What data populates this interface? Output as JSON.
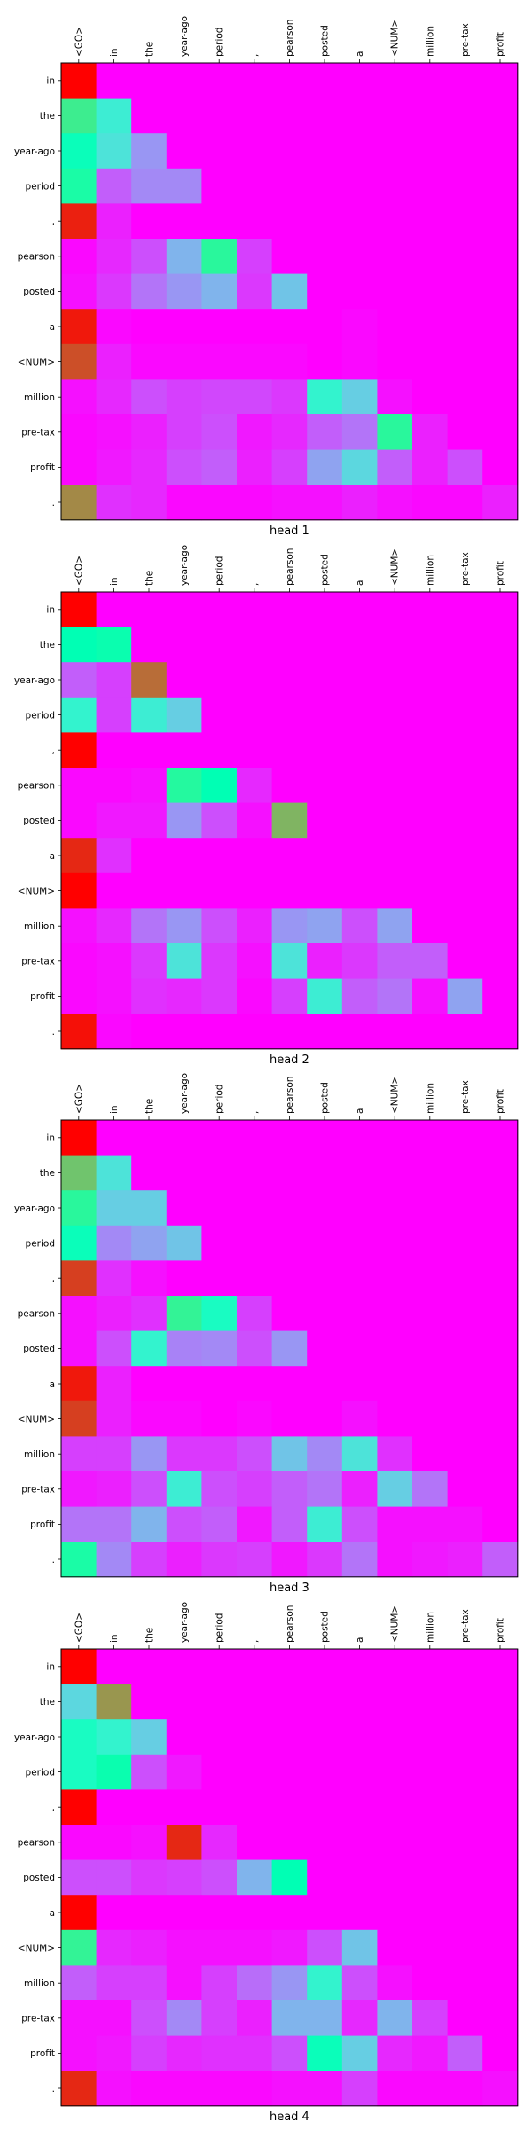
{
  "chart_data": [
    {
      "type": "heatmap",
      "title": "head 1",
      "x_labels": [
        "<GO>",
        "in",
        "the",
        "year-ago",
        "period",
        ",",
        "pearson",
        "posted",
        "a",
        "<NUM>",
        "million",
        "pre-tax",
        "profit"
      ],
      "y_labels": [
        "in",
        "the",
        "year-ago",
        "period",
        ",",
        "pearson",
        "posted",
        "a",
        "<NUM>",
        "million",
        "pre-tax",
        "profit",
        "."
      ],
      "colormap": "rainbow",
      "values": [
        [
          1.0,
          0.0,
          0.0,
          0.0,
          0.0,
          0.0,
          0.0,
          0.0,
          0.0,
          0.0,
          0.0,
          0.0,
          0.0
        ],
        [
          0.62,
          0.38,
          0.0,
          0.0,
          0.0,
          0.0,
          0.0,
          0.0,
          0.0,
          0.0,
          0.0,
          0.0,
          0.0
        ],
        [
          0.48,
          0.35,
          0.2,
          0.0,
          0.0,
          0.0,
          0.0,
          0.0,
          0.0,
          0.0,
          0.0,
          0.0,
          0.0
        ],
        [
          0.55,
          0.12,
          0.18,
          0.18,
          0.0,
          0.0,
          0.0,
          0.0,
          0.0,
          0.0,
          0.0,
          0.0,
          0.0
        ],
        [
          0.96,
          0.04,
          0.0,
          0.0,
          0.0,
          0.0,
          0.0,
          0.0,
          0.0,
          0.0,
          0.0,
          0.0,
          0.0
        ],
        [
          0.01,
          0.05,
          0.1,
          0.25,
          0.58,
          0.08,
          0.0,
          0.0,
          0.0,
          0.0,
          0.0,
          0.0,
          0.0
        ],
        [
          0.02,
          0.07,
          0.15,
          0.2,
          0.25,
          0.07,
          0.28,
          0.0,
          0.0,
          0.0,
          0.0,
          0.0,
          0.0
        ],
        [
          0.97,
          0.01,
          0.0,
          0.0,
          0.0,
          0.0,
          0.0,
          0.0,
          0.01,
          0.0,
          0.0,
          0.0,
          0.0
        ],
        [
          0.9,
          0.04,
          0.01,
          0.01,
          0.01,
          0.01,
          0.01,
          0.0,
          0.01,
          0.0,
          0.0,
          0.0,
          0.0
        ],
        [
          0.02,
          0.05,
          0.1,
          0.08,
          0.09,
          0.09,
          0.07,
          0.4,
          0.3,
          0.02,
          0.0,
          0.0,
          0.0
        ],
        [
          0.01,
          0.02,
          0.04,
          0.08,
          0.1,
          0.03,
          0.05,
          0.12,
          0.15,
          0.58,
          0.04,
          0.0,
          0.0
        ],
        [
          0.01,
          0.03,
          0.05,
          0.1,
          0.12,
          0.04,
          0.08,
          0.22,
          0.32,
          0.12,
          0.04,
          0.1,
          0.0
        ],
        [
          0.82,
          0.06,
          0.05,
          0.01,
          0.01,
          0.01,
          0.02,
          0.02,
          0.04,
          0.02,
          0.01,
          0.01,
          0.04
        ]
      ]
    },
    {
      "type": "heatmap",
      "title": "head 2",
      "x_labels": [
        "<GO>",
        "in",
        "the",
        "year-ago",
        "period",
        ",",
        "pearson",
        "posted",
        "a",
        "<NUM>",
        "million",
        "pre-tax",
        "profit"
      ],
      "y_labels": [
        "in",
        "the",
        "year-ago",
        "period",
        ",",
        "pearson",
        "posted",
        "a",
        "<NUM>",
        "million",
        "pre-tax",
        "profit",
        "."
      ],
      "colormap": "rainbow",
      "values": [
        [
          1.0,
          0.0,
          0.0,
          0.0,
          0.0,
          0.0,
          0.0,
          0.0,
          0.0,
          0.0,
          0.0,
          0.0,
          0.0
        ],
        [
          0.5,
          0.52,
          0.0,
          0.0,
          0.0,
          0.0,
          0.0,
          0.0,
          0.0,
          0.0,
          0.0,
          0.0,
          0.0
        ],
        [
          0.12,
          0.08,
          0.86,
          0.0,
          0.0,
          0.0,
          0.0,
          0.0,
          0.0,
          0.0,
          0.0,
          0.0,
          0.0
        ],
        [
          0.4,
          0.08,
          0.38,
          0.3,
          0.0,
          0.0,
          0.0,
          0.0,
          0.0,
          0.0,
          0.0,
          0.0,
          0.0
        ],
        [
          1.0,
          0.0,
          0.0,
          0.0,
          0.0,
          0.0,
          0.0,
          0.0,
          0.0,
          0.0,
          0.0,
          0.0,
          0.0
        ],
        [
          0.01,
          0.01,
          0.02,
          0.57,
          0.5,
          0.05,
          0.0,
          0.0,
          0.0,
          0.0,
          0.0,
          0.0,
          0.0
        ],
        [
          0.01,
          0.03,
          0.03,
          0.2,
          0.1,
          0.02,
          0.75,
          0.0,
          0.0,
          0.0,
          0.0,
          0.0,
          0.0
        ],
        [
          0.95,
          0.06,
          0.0,
          0.0,
          0.0,
          0.0,
          0.0,
          0.0,
          0.0,
          0.0,
          0.0,
          0.0,
          0.0
        ],
        [
          1.0,
          0.0,
          0.0,
          0.0,
          0.0,
          0.0,
          0.0,
          0.0,
          0.0,
          0.0,
          0.0,
          0.0,
          0.0
        ],
        [
          0.02,
          0.05,
          0.15,
          0.2,
          0.1,
          0.04,
          0.2,
          0.22,
          0.1,
          0.22,
          0.0,
          0.0,
          0.0
        ],
        [
          0.01,
          0.02,
          0.07,
          0.35,
          0.07,
          0.02,
          0.35,
          0.04,
          0.07,
          0.12,
          0.12,
          0.0,
          0.0
        ],
        [
          0.01,
          0.02,
          0.06,
          0.05,
          0.07,
          0.01,
          0.08,
          0.38,
          0.12,
          0.15,
          0.02,
          0.22,
          0.0
        ],
        [
          0.98,
          0.01,
          0.0,
          0.0,
          0.0,
          0.0,
          0.0,
          0.0,
          0.0,
          0.0,
          0.0,
          0.0,
          0.0
        ]
      ]
    },
    {
      "type": "heatmap",
      "title": "head 3",
      "x_labels": [
        "<GO>",
        "in",
        "the",
        "year-ago",
        "period",
        ",",
        "pearson",
        "posted",
        "a",
        "<NUM>",
        "million",
        "pre-tax",
        "profit"
      ],
      "y_labels": [
        "in",
        "the",
        "year-ago",
        "period",
        ",",
        "pearson",
        "posted",
        "a",
        "<NUM>",
        "million",
        "pre-tax",
        "profit",
        "."
      ],
      "colormap": "rainbow",
      "values": [
        [
          1.0,
          0.0,
          0.0,
          0.0,
          0.0,
          0.0,
          0.0,
          0.0,
          0.0,
          0.0,
          0.0,
          0.0,
          0.0
        ],
        [
          0.72,
          0.35,
          0.0,
          0.0,
          0.0,
          0.0,
          0.0,
          0.0,
          0.0,
          0.0,
          0.0,
          0.0,
          0.0
        ],
        [
          0.58,
          0.3,
          0.3,
          0.0,
          0.0,
          0.0,
          0.0,
          0.0,
          0.0,
          0.0,
          0.0,
          0.0,
          0.0
        ],
        [
          0.48,
          0.18,
          0.22,
          0.28,
          0.0,
          0.0,
          0.0,
          0.0,
          0.0,
          0.0,
          0.0,
          0.0,
          0.0
        ],
        [
          0.92,
          0.06,
          0.02,
          0.0,
          0.0,
          0.0,
          0.0,
          0.0,
          0.0,
          0.0,
          0.0,
          0.0,
          0.0
        ],
        [
          0.02,
          0.04,
          0.06,
          0.6,
          0.45,
          0.08,
          0.0,
          0.0,
          0.0,
          0.0,
          0.0,
          0.0,
          0.0
        ],
        [
          0.02,
          0.1,
          0.4,
          0.17,
          0.18,
          0.1,
          0.2,
          0.0,
          0.0,
          0.0,
          0.0,
          0.0,
          0.0
        ],
        [
          0.97,
          0.04,
          0.0,
          0.0,
          0.0,
          0.0,
          0.0,
          0.0,
          0.0,
          0.0,
          0.0,
          0.0,
          0.0
        ],
        [
          0.92,
          0.04,
          0.01,
          0.01,
          0.0,
          0.01,
          0.0,
          0.0,
          0.02,
          0.0,
          0.0,
          0.0,
          0.0
        ],
        [
          0.08,
          0.08,
          0.2,
          0.07,
          0.07,
          0.1,
          0.28,
          0.18,
          0.35,
          0.06,
          0.0,
          0.0,
          0.0
        ],
        [
          0.03,
          0.04,
          0.1,
          0.38,
          0.1,
          0.08,
          0.12,
          0.15,
          0.04,
          0.3,
          0.15,
          0.0,
          0.0
        ],
        [
          0.15,
          0.15,
          0.25,
          0.1,
          0.12,
          0.03,
          0.12,
          0.38,
          0.1,
          0.02,
          0.02,
          0.02,
          0.0
        ],
        [
          0.55,
          0.18,
          0.08,
          0.04,
          0.07,
          0.08,
          0.03,
          0.07,
          0.15,
          0.02,
          0.03,
          0.04,
          0.12
        ]
      ]
    },
    {
      "type": "heatmap",
      "title": "head 4",
      "x_labels": [
        "<GO>",
        "in",
        "the",
        "year-ago",
        "period",
        ",",
        "pearson",
        "posted",
        "a",
        "<NUM>",
        "million",
        "pre-tax",
        "profit"
      ],
      "y_labels": [
        "in",
        "the",
        "year-ago",
        "period",
        ",",
        "pearson",
        "posted",
        "a",
        "<NUM>",
        "million",
        "pre-tax",
        "profit",
        "."
      ],
      "colormap": "rainbow",
      "values": [
        [
          1.0,
          0.0,
          0.0,
          0.0,
          0.0,
          0.0,
          0.0,
          0.0,
          0.0,
          0.0,
          0.0,
          0.0,
          0.0
        ],
        [
          0.32,
          0.8,
          0.0,
          0.0,
          0.0,
          0.0,
          0.0,
          0.0,
          0.0,
          0.0,
          0.0,
          0.0,
          0.0
        ],
        [
          0.45,
          0.4,
          0.3,
          0.0,
          0.0,
          0.0,
          0.0,
          0.0,
          0.0,
          0.0,
          0.0,
          0.0,
          0.0
        ],
        [
          0.45,
          0.52,
          0.1,
          0.03,
          0.0,
          0.0,
          0.0,
          0.0,
          0.0,
          0.0,
          0.0,
          0.0,
          0.0
        ],
        [
          1.0,
          0.0,
          0.0,
          0.0,
          0.0,
          0.0,
          0.0,
          0.0,
          0.0,
          0.0,
          0.0,
          0.0,
          0.0
        ],
        [
          0.01,
          0.01,
          0.02,
          0.95,
          0.05,
          0.0,
          0.0,
          0.0,
          0.0,
          0.0,
          0.0,
          0.0,
          0.0
        ],
        [
          0.1,
          0.1,
          0.07,
          0.08,
          0.1,
          0.25,
          0.5,
          0.0,
          0.0,
          0.0,
          0.0,
          0.0,
          0.0
        ],
        [
          1.0,
          0.0,
          0.0,
          0.0,
          0.0,
          0.0,
          0.0,
          0.0,
          0.0,
          0.0,
          0.0,
          0.0,
          0.0
        ],
        [
          0.6,
          0.05,
          0.04,
          0.02,
          0.02,
          0.02,
          0.03,
          0.1,
          0.28,
          0.0,
          0.0,
          0.0,
          0.0
        ],
        [
          0.12,
          0.08,
          0.08,
          0.02,
          0.08,
          0.14,
          0.2,
          0.4,
          0.1,
          0.02,
          0.0,
          0.0,
          0.0
        ],
        [
          0.02,
          0.02,
          0.1,
          0.18,
          0.08,
          0.04,
          0.25,
          0.25,
          0.05,
          0.25,
          0.08,
          0.0,
          0.0
        ],
        [
          0.02,
          0.03,
          0.08,
          0.05,
          0.06,
          0.06,
          0.1,
          0.48,
          0.3,
          0.05,
          0.03,
          0.12,
          0.0
        ],
        [
          0.95,
          0.02,
          0.01,
          0.01,
          0.01,
          0.01,
          0.02,
          0.02,
          0.08,
          0.01,
          0.01,
          0.01,
          0.02
        ]
      ]
    }
  ]
}
